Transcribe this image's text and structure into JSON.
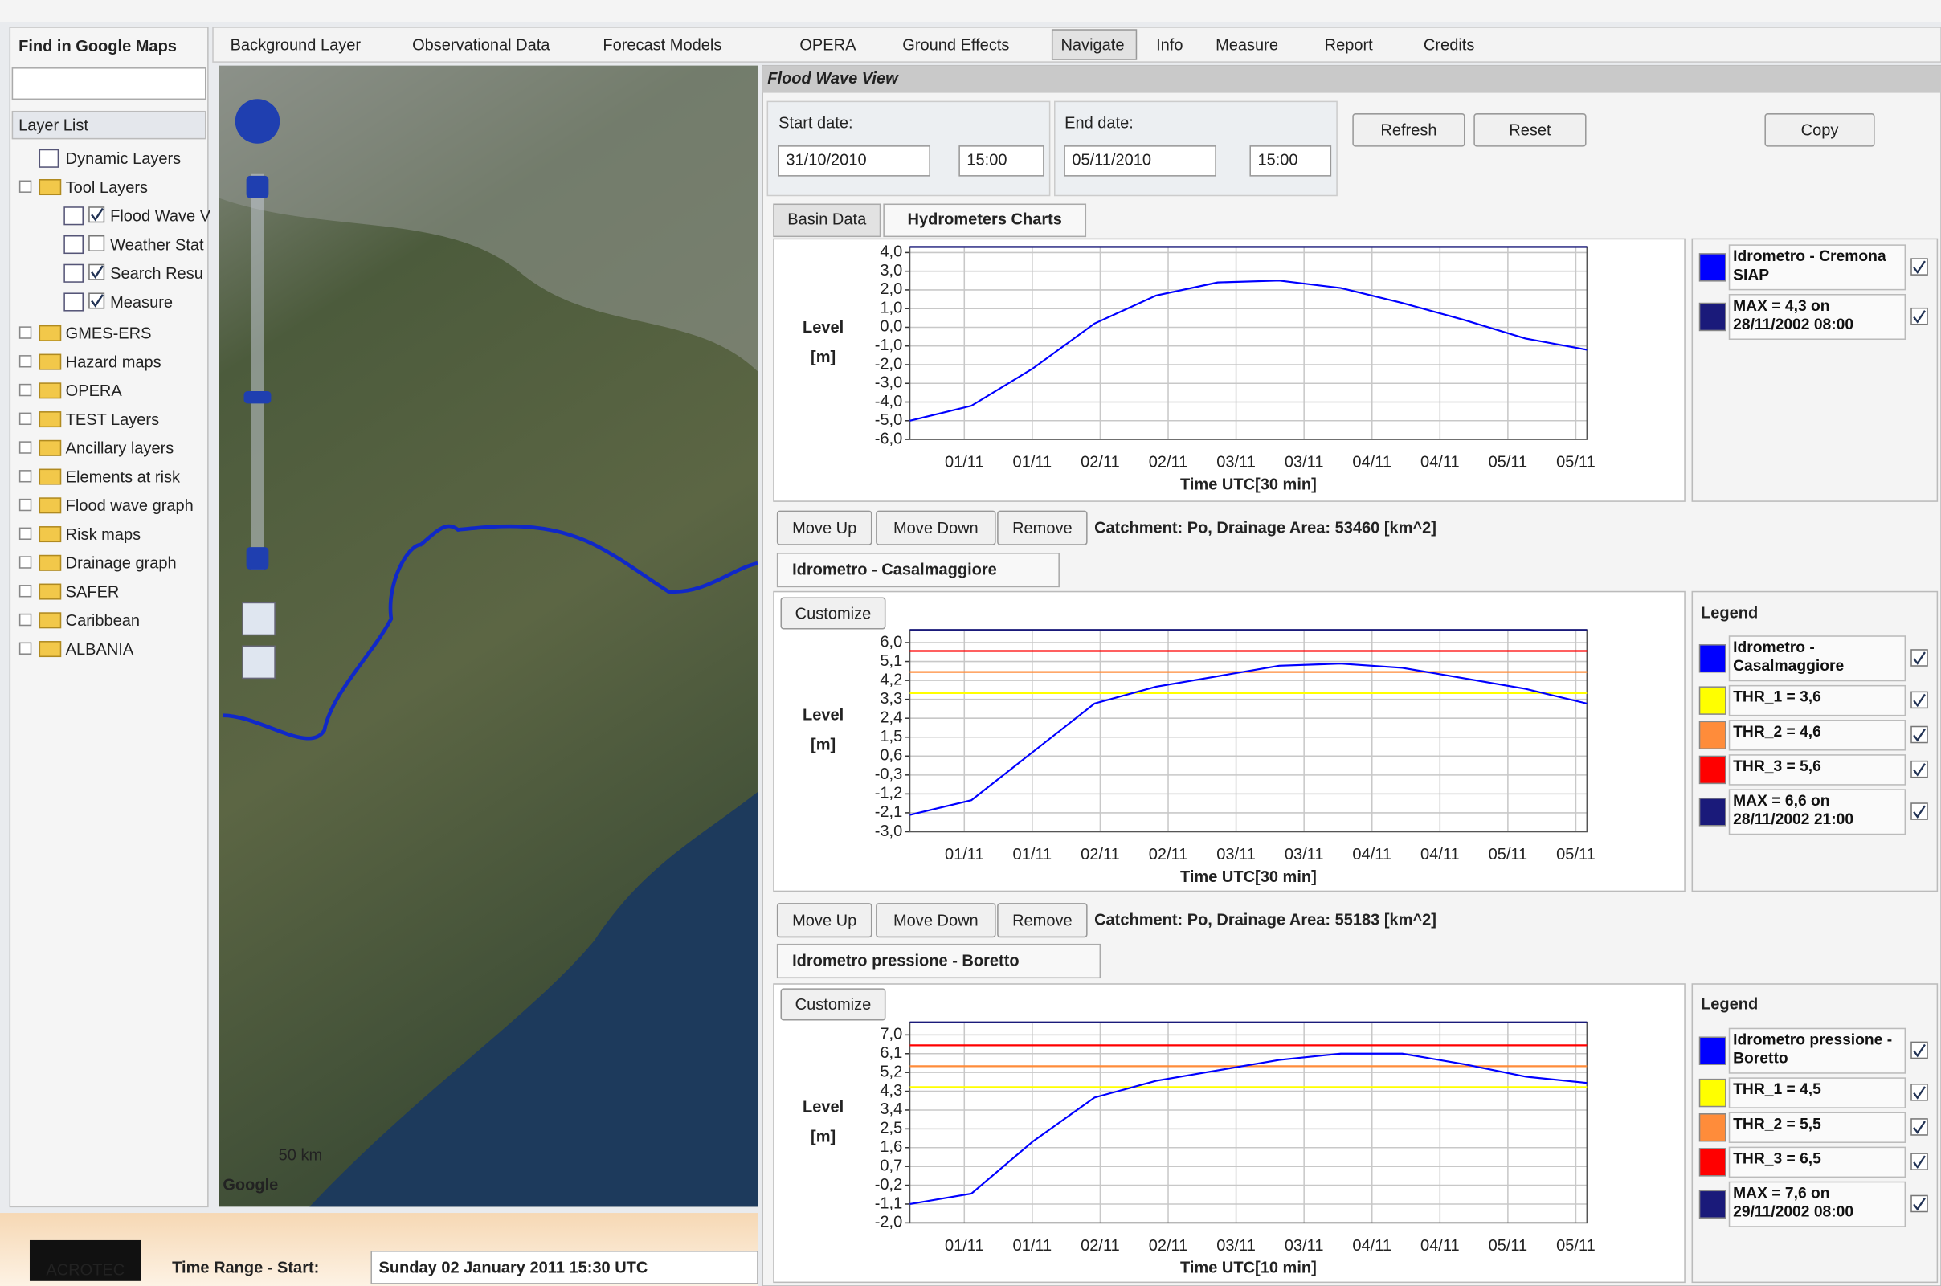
{
  "toolbar": {
    "items": [
      "Background Layer",
      "Observational Data",
      "Forecast Models",
      "OPERA",
      "Ground Effects",
      "Navigate",
      "Info",
      "Measure",
      "Report",
      "Credits"
    ]
  },
  "sidebar": {
    "search_title": "Find in Google Maps",
    "layer_list_title": "Layer List",
    "layers": [
      {
        "label": "Dynamic Layers",
        "level": 1
      },
      {
        "label": "Tool Layers",
        "level": 0
      },
      {
        "label": "Flood Wave V",
        "level": 2,
        "checked": true
      },
      {
        "label": "Weather Stat",
        "level": 2,
        "checked": false
      },
      {
        "label": "Search Resu",
        "level": 2,
        "checked": true
      },
      {
        "label": "Measure",
        "level": 2,
        "checked": true
      },
      {
        "label": "GMES-ERS",
        "level": 0
      },
      {
        "label": "Hazard maps",
        "level": 0
      },
      {
        "label": "OPERA",
        "level": 0
      },
      {
        "label": "TEST Layers",
        "level": 0
      },
      {
        "label": "Ancillary layers",
        "level": 0
      },
      {
        "label": "Elements at risk",
        "level": 0
      },
      {
        "label": "Flood wave graph",
        "level": 0
      },
      {
        "label": "Risk maps",
        "level": 0
      },
      {
        "label": "Drainage graph",
        "level": 0
      },
      {
        "label": "SAFER",
        "level": 0
      },
      {
        "label": "Caribbean",
        "level": 0
      },
      {
        "label": "ALBANIA",
        "level": 0
      }
    ]
  },
  "map": {
    "scale": "50 km",
    "brand": "Google"
  },
  "panel": {
    "title": "Flood Wave View",
    "start_label": "Start date:",
    "start_date": "31/10/2010",
    "start_time": "15:00",
    "end_label": "End date:",
    "end_date": "05/11/2010",
    "end_time": "15:00",
    "buttons": [
      "Refresh",
      "Reset",
      "Copy"
    ],
    "tabs": [
      "Basin Data",
      "Hydrometers Charts"
    ]
  },
  "charts": [
    {
      "type": "line",
      "y_label": [
        "Level",
        "[m]"
      ],
      "x_label": "Time UTC[30 min]",
      "ylim": [
        -6,
        4.3
      ],
      "yticks": [
        {
          "value": 4,
          "label": "4,0"
        },
        {
          "value": 3,
          "label": "3,0"
        },
        {
          "value": 2,
          "label": "2,0"
        },
        {
          "value": 1,
          "label": "1,0"
        },
        {
          "value": 0,
          "label": "0,0"
        },
        {
          "value": -1,
          "label": "-1,0"
        },
        {
          "value": -2,
          "label": "-2,0"
        },
        {
          "value": -3,
          "label": "-3,0"
        },
        {
          "value": -4,
          "label": "-4,0"
        },
        {
          "value": -5,
          "label": "-5,0"
        },
        {
          "value": -6,
          "label": "-6,0"
        }
      ],
      "xticks": [
        "01/11",
        "01/11",
        "02/11",
        "02/11",
        "03/11",
        "03/11",
        "04/11",
        "04/11",
        "05/11",
        "05/11"
      ],
      "series": [
        {
          "name": "Idrometro - Cremona SIAP",
          "color": "#0000ff",
          "values": [
            -5.0,
            -4.2,
            -2.2,
            0.2,
            1.7,
            2.4,
            2.5,
            2.1,
            1.3,
            0.4,
            -0.6,
            -1.2
          ]
        }
      ],
      "thresholds": [],
      "max": {
        "name": "MAX = 4,3 on 28/11/2002 08:00",
        "value": 4.3,
        "color": "#1a1a7a"
      }
    },
    {
      "type": "line",
      "buttons": [
        "Move Up",
        "Move Down",
        "Remove"
      ],
      "catchment": "Catchment: Po, Drainage Area: 53460 [km^2]",
      "station": "Idrometro - Casalmaggiore",
      "customize": "Customize",
      "legend_title": "Legend",
      "y_label": [
        "Level",
        "[m]"
      ],
      "x_label": "Time UTC[30 min]",
      "ylim": [
        -3,
        6.6
      ],
      "yticks": [
        {
          "value": 6,
          "label": "6,0"
        },
        {
          "value": 5.1,
          "label": "5,1"
        },
        {
          "value": 4.2,
          "label": "4,2"
        },
        {
          "value": 3.3,
          "label": "3,3"
        },
        {
          "value": 2.4,
          "label": "2,4"
        },
        {
          "value": 1.5,
          "label": "1,5"
        },
        {
          "value": 0.6,
          "label": "0,6"
        },
        {
          "value": -0.3,
          "label": "-0,3"
        },
        {
          "value": -1.2,
          "label": "-1,2"
        },
        {
          "value": -2.1,
          "label": "-2,1"
        },
        {
          "value": -3,
          "label": "-3,0"
        }
      ],
      "xticks": [
        "01/11",
        "01/11",
        "02/11",
        "02/11",
        "03/11",
        "03/11",
        "04/11",
        "04/11",
        "05/11",
        "05/11"
      ],
      "series": [
        {
          "name": "Idrometro - Casalmaggiore",
          "color": "#0000ff",
          "values": [
            -2.2,
            -1.5,
            0.8,
            3.1,
            3.9,
            4.4,
            4.9,
            5.0,
            4.8,
            4.3,
            3.8,
            3.1
          ]
        }
      ],
      "thresholds": [
        {
          "name": "THR_1 = 3,6",
          "value": 3.6,
          "color": "#ffff00"
        },
        {
          "name": "THR_2 = 4,6",
          "value": 4.6,
          "color": "#ff8c3a"
        },
        {
          "name": "THR_3 = 5,6",
          "value": 5.6,
          "color": "#ff0000"
        }
      ],
      "max": {
        "name": "MAX = 6,6 on 28/11/2002 21:00",
        "value": 6.6,
        "color": "#1a1a7a"
      }
    },
    {
      "type": "line",
      "buttons": [
        "Move Up",
        "Move Down",
        "Remove"
      ],
      "catchment": "Catchment: Po, Drainage Area: 55183 [km^2]",
      "station": "Idrometro pressione - Boretto",
      "customize": "Customize",
      "legend_title": "Legend",
      "y_label": [
        "Level",
        "[m]"
      ],
      "x_label": "Time UTC[10 min]",
      "ylim": [
        -2,
        7.6
      ],
      "yticks": [
        {
          "value": 7,
          "label": "7,0"
        },
        {
          "value": 6.1,
          "label": "6,1"
        },
        {
          "value": 5.2,
          "label": "5,2"
        },
        {
          "value": 4.3,
          "label": "4,3"
        },
        {
          "value": 3.4,
          "label": "3,4"
        },
        {
          "value": 2.5,
          "label": "2,5"
        },
        {
          "value": 1.6,
          "label": "1,6"
        },
        {
          "value": 0.7,
          "label": "0,7"
        },
        {
          "value": -0.2,
          "label": "-0,2"
        },
        {
          "value": -1.1,
          "label": "-1,1"
        },
        {
          "value": -2,
          "label": "-2,0"
        }
      ],
      "xticks": [
        "01/11",
        "01/11",
        "02/11",
        "02/11",
        "03/11",
        "03/11",
        "04/11",
        "04/11",
        "05/11",
        "05/11"
      ],
      "series": [
        {
          "name": "Idrometro pressione - Boretto",
          "color": "#0000ff",
          "values": [
            -1.1,
            -0.6,
            1.9,
            4.0,
            4.8,
            5.3,
            5.8,
            6.1,
            6.1,
            5.6,
            5.0,
            4.7
          ]
        }
      ],
      "thresholds": [
        {
          "name": "THR_1 = 4,5",
          "value": 4.5,
          "color": "#ffff00"
        },
        {
          "name": "THR_2 = 5,5",
          "value": 5.5,
          "color": "#ff8c3a"
        },
        {
          "name": "THR_3 = 6,5",
          "value": 6.5,
          "color": "#ff0000"
        }
      ],
      "max": {
        "name": "MAX = 7,6 on 29/11/2002 08:00",
        "value": 7.6,
        "color": "#1a1a7a"
      }
    }
  ],
  "footer": {
    "logo": "ACROTEC",
    "time_range_label": "Time Range - Start:",
    "time_range_value": "Sunday 02 January 2011 15:30 UTC"
  }
}
